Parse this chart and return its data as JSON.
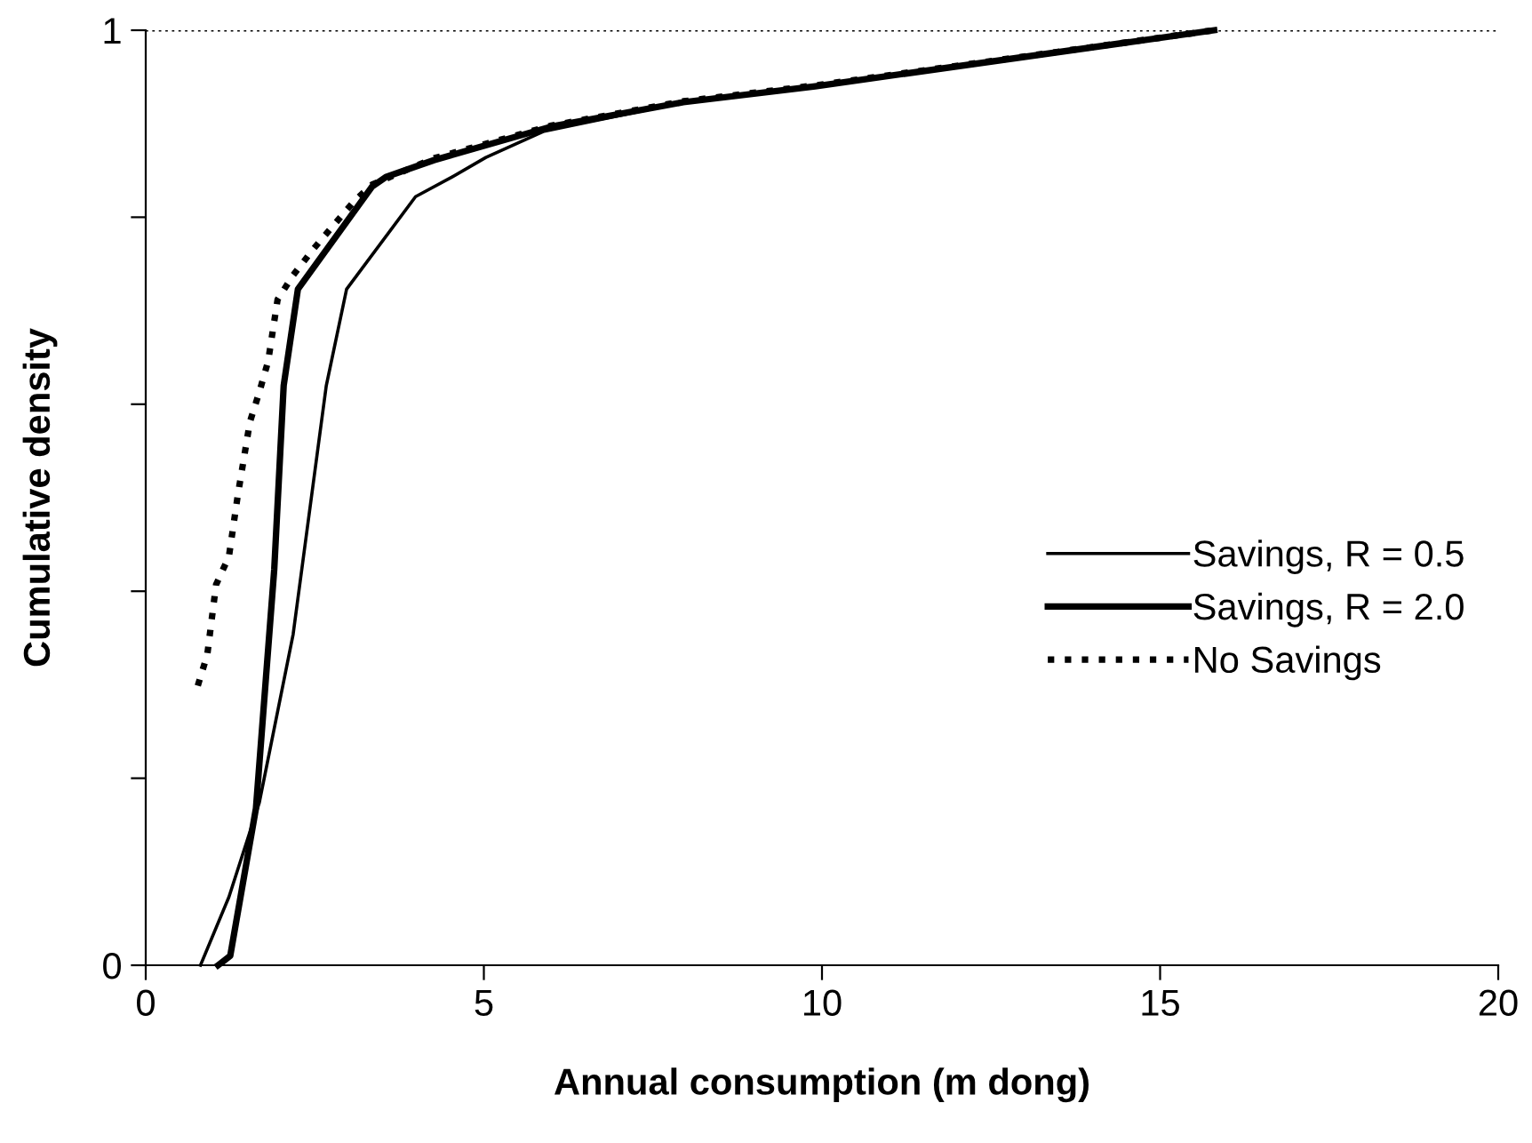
{
  "chart_data": {
    "type": "line",
    "xlabel": "Annual consumption (m dong)",
    "ylabel": "Cumulative density",
    "xlim": [
      0,
      20
    ],
    "xticks": [
      0,
      5,
      10,
      15,
      20
    ],
    "ylim": [
      0,
      1
    ],
    "yticks": [
      0,
      {
        "value": 0.2,
        "label": null
      },
      {
        "value": 0.4,
        "label": null
      },
      {
        "value": 0.6,
        "label": null
      },
      {
        "value": 0.8,
        "label": null
      },
      1
    ],
    "grid": false,
    "legend": "right",
    "marker": "none",
    "ref_lines": [
      {
        "axis": "y",
        "value": 1,
        "line_style": "dotted",
        "color": "#000000"
      }
    ],
    "series": [
      {
        "name": "Savings, R = 0.5",
        "color": "#000000",
        "line_style": "solid",
        "x": [
          0.81,
          1.23,
          1.68,
          2.18,
          2.67,
          2.97,
          3.99,
          4.53,
          5.03,
          5.89,
          7.95,
          9.9,
          15.8
        ],
        "values": [
          0.0,
          0.073,
          0.174,
          0.354,
          0.62,
          0.723,
          0.822,
          0.843,
          0.864,
          0.892,
          0.923,
          0.94,
          1.0
        ]
      },
      {
        "name": "Savings, R = 2.0",
        "color": "#000000",
        "line_style": "solid",
        "x": [
          1.07,
          1.25,
          1.63,
          1.9,
          2.04,
          2.25,
          3.35,
          3.55,
          4.26,
          6.0,
          7.95,
          9.9,
          15.8
        ],
        "values": [
          0.0,
          0.01,
          0.168,
          0.423,
          0.62,
          0.723,
          0.833,
          0.843,
          0.861,
          0.897,
          0.923,
          0.94,
          1.0
        ]
      },
      {
        "name": "No Savings",
        "color": "#000000",
        "line_style": "dotted",
        "x": [
          0.77,
          0.91,
          1.04,
          1.23,
          1.36,
          1.54,
          1.68,
          1.81,
          1.95,
          2.18,
          2.49,
          3.08,
          3.35,
          4.26,
          6.0,
          7.95,
          9.9,
          15.8
        ],
        "values": [
          0.299,
          0.332,
          0.407,
          0.437,
          0.502,
          0.581,
          0.613,
          0.646,
          0.712,
          0.738,
          0.767,
          0.817,
          0.835,
          0.863,
          0.898,
          0.924,
          0.941,
          1.0
        ]
      }
    ]
  }
}
